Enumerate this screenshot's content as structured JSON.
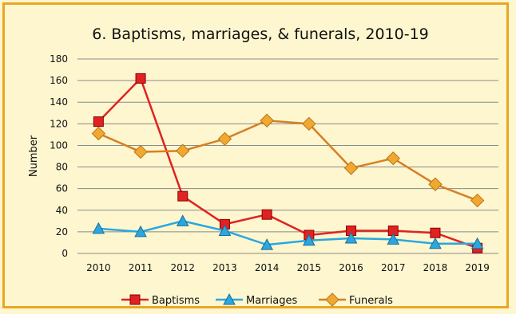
{
  "chart_data": {
    "type": "line",
    "title": "6. Baptisms, marriages, & funerals, 2010-19",
    "xlabel": "",
    "ylabel": "Number",
    "ylim": [
      0,
      180
    ],
    "yticks": [
      0,
      20,
      40,
      60,
      80,
      100,
      120,
      140,
      160,
      180
    ],
    "x": [
      "2010",
      "2011",
      "2012",
      "2013",
      "2014",
      "2015",
      "2016",
      "2017",
      "2018",
      "2019"
    ],
    "grid": true,
    "legend_position": "bottom",
    "series": [
      {
        "name": "Baptisms",
        "color": "#e02222",
        "marker": "square",
        "values": [
          122,
          162,
          53,
          27,
          36,
          17,
          21,
          21,
          19,
          5
        ]
      },
      {
        "name": "Marriages",
        "color": "#2aa7df",
        "marker": "triangle",
        "values": [
          23,
          20,
          30,
          21,
          8,
          12,
          14,
          13,
          9,
          9
        ]
      },
      {
        "name": "Funerals",
        "color": "#f0a830",
        "line_color": "#d87f22",
        "marker": "diamond",
        "values": [
          111,
          94,
          95,
          106,
          123,
          120,
          79,
          88,
          64,
          49
        ]
      }
    ]
  }
}
